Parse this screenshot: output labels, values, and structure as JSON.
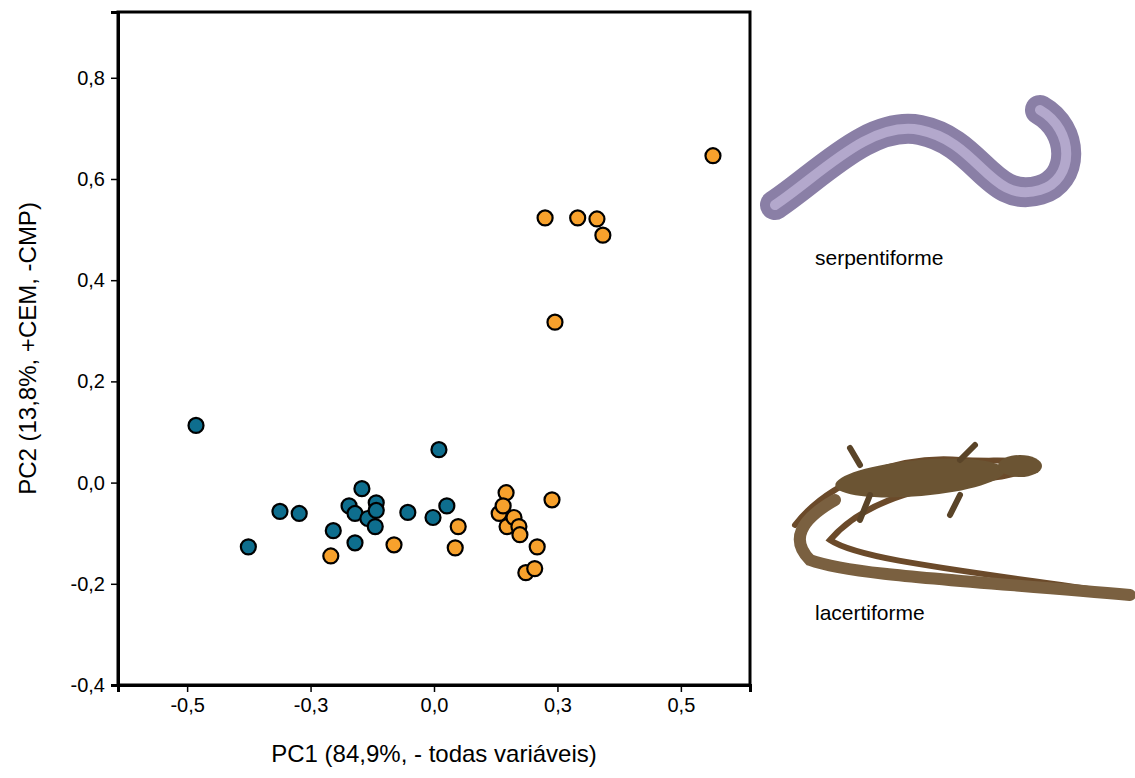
{
  "chart_data": {
    "type": "scatter",
    "x_label": "PC1 (84,9%, - todas variáveis)",
    "y_label": "PC2 (13,8%, +CEM, -CMP)",
    "annotations": [
      "serpentiforme",
      "lacertiforme"
    ],
    "xlim": [
      -0.64,
      0.64
    ],
    "ylim": [
      -0.4,
      0.93
    ],
    "xticks": [
      {
        "value": -0.5,
        "label": "-0,5"
      },
      {
        "value": -0.25,
        "label": "-0,3"
      },
      {
        "value": 0,
        "label": "0,0"
      },
      {
        "value": 0.25,
        "label": "0,3"
      },
      {
        "value": 0.5,
        "label": "0,5"
      }
    ],
    "yticks": [
      {
        "value": -0.4,
        "label": "-0,4"
      },
      {
        "value": -0.2,
        "label": "-0,2"
      },
      {
        "value": 0,
        "label": "0,0"
      },
      {
        "value": 0.2,
        "label": "0,2"
      },
      {
        "value": 0.4,
        "label": "0,4"
      },
      {
        "value": 0.6,
        "label": "0,6"
      },
      {
        "value": 0.8,
        "label": "0,8"
      }
    ],
    "grid": false,
    "series": [
      {
        "color": "#0e6e8e",
        "marker": "circle",
        "x": [
          -0.482,
          -0.376,
          -0.312,
          -0.273,
          -0.204,
          -0.172,
          -0.16,
          -0.16,
          -0.146,
          -0.134,
          -0.117,
          -0.117,
          -0.119,
          -0.053,
          -0.002,
          0.01,
          0.026
        ],
        "values": [
          0.113,
          -0.127,
          -0.057,
          -0.061,
          -0.095,
          -0.046,
          -0.061,
          -0.119,
          -0.012,
          -0.071,
          -0.04,
          -0.055,
          -0.087,
          -0.059,
          -0.069,
          0.065,
          -0.046
        ]
      },
      {
        "color": "#f7a12c",
        "marker": "circle",
        "x": [
          -0.209,
          -0.081,
          0.049,
          0.043,
          0.132,
          0.146,
          0.14,
          0.148,
          0.162,
          0.172,
          0.174,
          0.186,
          0.204,
          0.209,
          0.239,
          0.245,
          0.225,
          0.291,
          0.33,
          0.342,
          0.565
        ],
        "values": [
          -0.145,
          -0.123,
          -0.087,
          -0.129,
          -0.061,
          -0.02,
          -0.046,
          -0.087,
          -0.069,
          -0.087,
          -0.103,
          -0.178,
          -0.17,
          -0.127,
          -0.034,
          0.317,
          0.523,
          0.523,
          0.521,
          0.489,
          0.646
        ]
      }
    ]
  }
}
